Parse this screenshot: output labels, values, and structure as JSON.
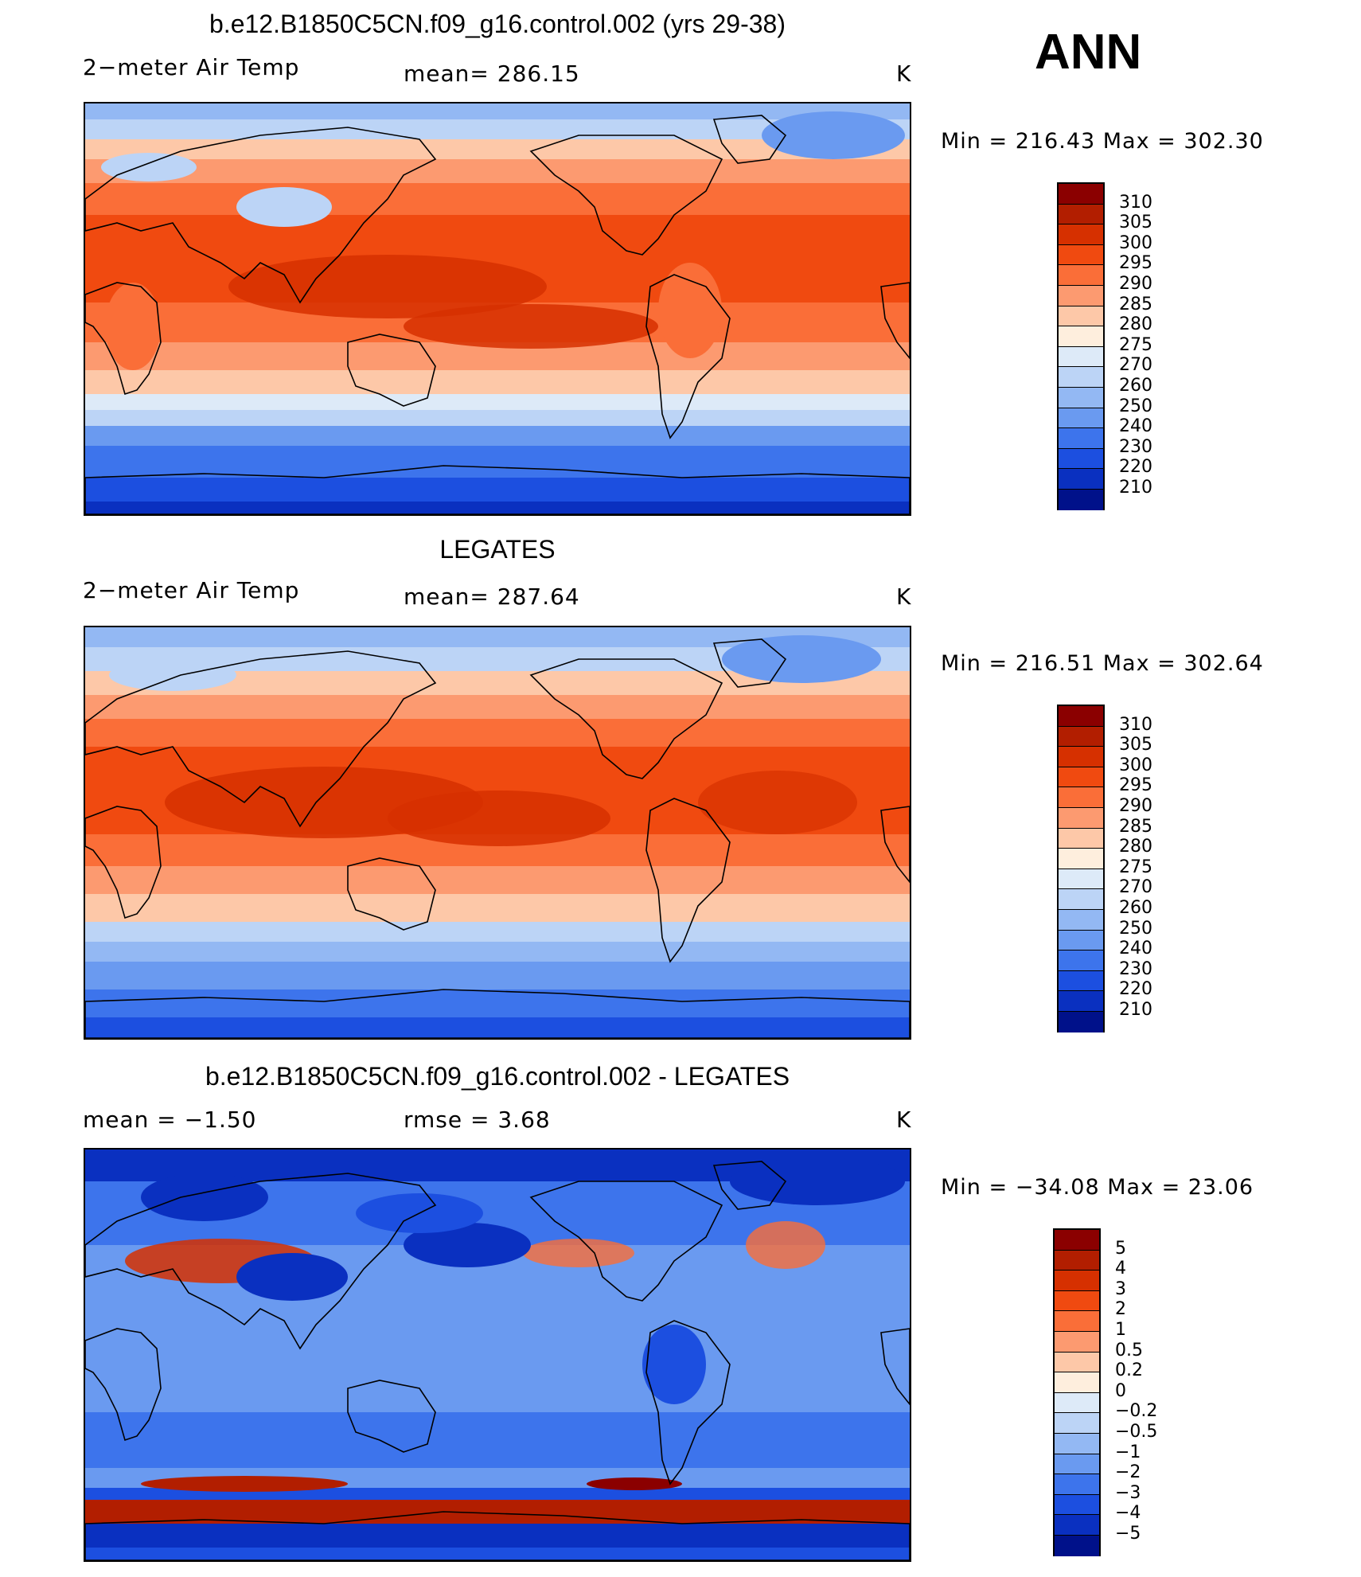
{
  "season": "ANN",
  "panels": [
    {
      "title": "b.e12.B1850C5CN.f09_g16.control.002 (yrs 29-38)",
      "left_label": "2−meter Air Temp",
      "center_label": "mean=  286.15",
      "right_label": "K",
      "minmax": "Min  =  216.43  Max  =  302.30"
    },
    {
      "title": "LEGATES",
      "left_label": "2−meter Air Temp",
      "center_label": "mean=  287.64",
      "right_label": "K",
      "minmax": "Min  =  216.51  Max  =  302.64"
    },
    {
      "title": "b.e12.B1850C5CN.f09_g16.control.002 - LEGATES",
      "left_label": "mean  =    −1.50",
      "center_label": "rmse  =     3.68",
      "right_label": "K",
      "minmax": "Min  =  −34.08  Max  =    23.06"
    }
  ],
  "colorbars": {
    "temperature": {
      "labels": [
        "310",
        "305",
        "300",
        "295",
        "290",
        "285",
        "280",
        "275",
        "270",
        "260",
        "250",
        "240",
        "230",
        "220",
        "210"
      ],
      "colors": [
        "#8b0000",
        "#b21e00",
        "#d63000",
        "#f04a10",
        "#fa6e38",
        "#fc9a70",
        "#fdc8a8",
        "#feeedd",
        "#ddeaf8",
        "#bcd4f6",
        "#93b8f3",
        "#6a9af0",
        "#3d74ec",
        "#1c4fe0",
        "#0a30c0",
        "#00118a"
      ]
    },
    "difference": {
      "labels": [
        "5",
        "4",
        "3",
        "2",
        "1",
        "0.5",
        "0.2",
        "0",
        "−0.2",
        "−0.5",
        "−1",
        "−2",
        "−3",
        "−4",
        "−5"
      ],
      "colors": [
        "#8b0000",
        "#b21e00",
        "#d63000",
        "#f04a10",
        "#fa6e38",
        "#fc9a70",
        "#fdc8a8",
        "#feeedd",
        "#ddeaf8",
        "#bcd4f6",
        "#93b8f3",
        "#6a9af0",
        "#3d74ec",
        "#1c4fe0",
        "#0a30c0",
        "#00118a"
      ]
    }
  },
  "chart_data": [
    {
      "type": "heatmap",
      "title": "b.e12.B1850C5CN.f09_g16.control.002 (yrs 29-38)",
      "variable": "2−meter Air Temp",
      "units": "K",
      "mean": 286.15,
      "min": 216.43,
      "max": 302.3,
      "contour_levels": [
        210,
        220,
        230,
        240,
        250,
        260,
        270,
        275,
        280,
        285,
        290,
        295,
        300,
        305,
        310
      ]
    },
    {
      "type": "heatmap",
      "title": "LEGATES",
      "variable": "2−meter Air Temp",
      "units": "K",
      "mean": 287.64,
      "min": 216.51,
      "max": 302.64,
      "contour_levels": [
        210,
        220,
        230,
        240,
        250,
        260,
        270,
        275,
        280,
        285,
        290,
        295,
        300,
        305,
        310
      ]
    },
    {
      "type": "heatmap",
      "title": "b.e12.B1850C5CN.f09_g16.control.002 - LEGATES",
      "units": "K",
      "mean": -1.5,
      "rmse": 3.68,
      "min": -34.08,
      "max": 23.06,
      "contour_levels": [
        -5,
        -4,
        -3,
        -2,
        -1,
        -0.5,
        -0.2,
        0,
        0.2,
        0.5,
        1,
        2,
        3,
        4,
        5
      ]
    }
  ]
}
